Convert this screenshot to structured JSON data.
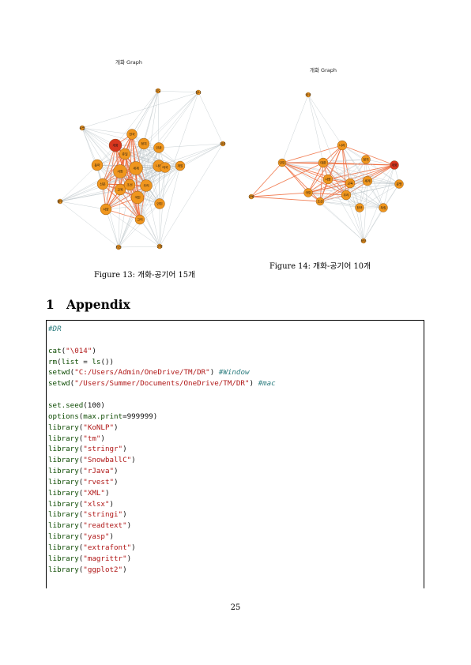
{
  "figures": [
    {
      "title": "개화 Graph",
      "caption": "Figure 13: 개화-공기어 15개",
      "nodes": [
        "개화",
        "유럽",
        "정치",
        "인금",
        "개발",
        "세계",
        "사랑",
        "동아",
        "우리",
        "대한",
        "지도",
        "청나",
        "전국",
        "나라",
        "미국",
        "신문",
        "교육",
        "국민",
        "황무",
        "서양",
        "고이",
        "인민",
        "조선",
        "최선",
        "군병",
        "쥬일"
      ]
    },
    {
      "title": "개화 Graph",
      "caption": "Figure 14: 개화-공기어 10개",
      "nodes": [
        "개화",
        "나라",
        "정치",
        "인민",
        "대한",
        "세계",
        "사랑",
        "교육",
        "우리",
        "국민",
        "문명",
        "조선",
        "전국",
        "외국",
        "군병",
        "정부",
        "독립"
      ]
    }
  ],
  "section": {
    "number": "1",
    "title": "Appendix"
  },
  "code_lines": [
    [
      {
        "t": "#DR",
        "c": "cm"
      }
    ],
    [],
    [
      {
        "t": "cat",
        "c": "kw"
      },
      {
        "t": "(",
        "c": ""
      },
      {
        "t": "\"\\014\"",
        "c": "str"
      },
      {
        "t": ")",
        "c": ""
      }
    ],
    [
      {
        "t": "rm",
        "c": "kw"
      },
      {
        "t": "(",
        "c": ""
      },
      {
        "t": "list",
        "c": "kw"
      },
      {
        "t": " = ",
        "c": ""
      },
      {
        "t": "ls",
        "c": "kw"
      },
      {
        "t": "())",
        "c": ""
      }
    ],
    [
      {
        "t": "setwd",
        "c": "kw"
      },
      {
        "t": "(",
        "c": ""
      },
      {
        "t": "\"C:/Users/Admin/OneDrive/TM/DR\"",
        "c": "str"
      },
      {
        "t": ") ",
        "c": ""
      },
      {
        "t": "#Window",
        "c": "cm"
      }
    ],
    [
      {
        "t": "setwd",
        "c": "kw"
      },
      {
        "t": "(",
        "c": ""
      },
      {
        "t": "\"/Users/Summer/Documents/OneDrive/TM/DR\"",
        "c": "str"
      },
      {
        "t": ") ",
        "c": ""
      },
      {
        "t": "#mac",
        "c": "cm"
      }
    ],
    [],
    [
      {
        "t": "set.seed",
        "c": "kw"
      },
      {
        "t": "(100)",
        "c": ""
      }
    ],
    [
      {
        "t": "options",
        "c": "kw"
      },
      {
        "t": "(",
        "c": ""
      },
      {
        "t": "max.print",
        "c": "kw"
      },
      {
        "t": "=999999)",
        "c": ""
      }
    ],
    [
      {
        "t": "library",
        "c": "kw"
      },
      {
        "t": "(",
        "c": ""
      },
      {
        "t": "\"KoNLP\"",
        "c": "str"
      },
      {
        "t": ")",
        "c": ""
      }
    ],
    [
      {
        "t": "library",
        "c": "kw"
      },
      {
        "t": "(",
        "c": ""
      },
      {
        "t": "\"tm\"",
        "c": "str"
      },
      {
        "t": ")",
        "c": ""
      }
    ],
    [
      {
        "t": "library",
        "c": "kw"
      },
      {
        "t": "(",
        "c": ""
      },
      {
        "t": "\"stringr\"",
        "c": "str"
      },
      {
        "t": ")",
        "c": ""
      }
    ],
    [
      {
        "t": "library",
        "c": "kw"
      },
      {
        "t": "(",
        "c": ""
      },
      {
        "t": "\"SnowballC\"",
        "c": "str"
      },
      {
        "t": ")",
        "c": ""
      }
    ],
    [
      {
        "t": "library",
        "c": "kw"
      },
      {
        "t": "(",
        "c": ""
      },
      {
        "t": "\"rJava\"",
        "c": "str"
      },
      {
        "t": ")",
        "c": ""
      }
    ],
    [
      {
        "t": "library",
        "c": "kw"
      },
      {
        "t": "(",
        "c": ""
      },
      {
        "t": "\"rvest\"",
        "c": "str"
      },
      {
        "t": ")",
        "c": ""
      }
    ],
    [
      {
        "t": "library",
        "c": "kw"
      },
      {
        "t": "(",
        "c": ""
      },
      {
        "t": "\"XML\"",
        "c": "str"
      },
      {
        "t": ")",
        "c": ""
      }
    ],
    [
      {
        "t": "library",
        "c": "kw"
      },
      {
        "t": "(",
        "c": ""
      },
      {
        "t": "\"xlsx\"",
        "c": "str"
      },
      {
        "t": ")",
        "c": ""
      }
    ],
    [
      {
        "t": "library",
        "c": "kw"
      },
      {
        "t": "(",
        "c": ""
      },
      {
        "t": "\"stringi\"",
        "c": "str"
      },
      {
        "t": ")",
        "c": ""
      }
    ],
    [
      {
        "t": "library",
        "c": "kw"
      },
      {
        "t": "(",
        "c": ""
      },
      {
        "t": "\"readtext\"",
        "c": "str"
      },
      {
        "t": ")",
        "c": ""
      }
    ],
    [
      {
        "t": "library",
        "c": "kw"
      },
      {
        "t": "(",
        "c": ""
      },
      {
        "t": "\"yasp\"",
        "c": "str"
      },
      {
        "t": ")",
        "c": ""
      }
    ],
    [
      {
        "t": "library",
        "c": "kw"
      },
      {
        "t": "(",
        "c": ""
      },
      {
        "t": "\"extrafont\"",
        "c": "str"
      },
      {
        "t": ")",
        "c": ""
      }
    ],
    [
      {
        "t": "library",
        "c": "kw"
      },
      {
        "t": "(",
        "c": ""
      },
      {
        "t": "\"magrittr\"",
        "c": "str"
      },
      {
        "t": ")",
        "c": ""
      }
    ],
    [
      {
        "t": "library",
        "c": "kw"
      },
      {
        "t": "(",
        "c": ""
      },
      {
        "t": "\"ggplot2\"",
        "c": "str"
      },
      {
        "t": ")",
        "c": ""
      }
    ]
  ],
  "page_number": "25",
  "colors": {
    "node_orange": "#f0961e",
    "node_red": "#d8361e",
    "edge_grey": "#b8c2c6",
    "edge_orange": "#ef6a3a",
    "keyword": "#0c4a00",
    "string": "#b01818",
    "comment": "#2b7c7e"
  }
}
